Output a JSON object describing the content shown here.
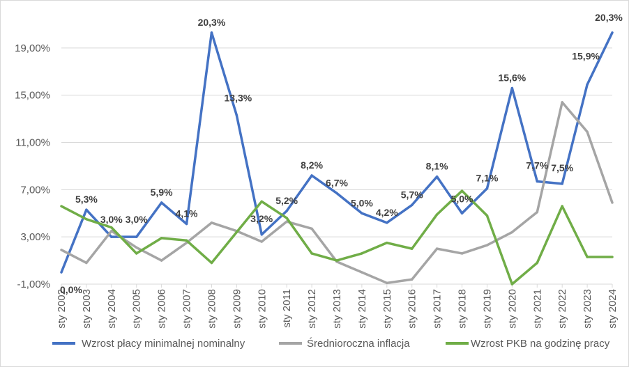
{
  "chart_data": {
    "type": "line",
    "title": "",
    "xlabel": "",
    "ylabel": "",
    "ylim": [
      -1,
      21
    ],
    "yticks": [
      "-1,00%",
      "3,00%",
      "7,00%",
      "11,00%",
      "15,00%",
      "19,00%"
    ],
    "ytick_values": [
      -1,
      3,
      7,
      11,
      15,
      19
    ],
    "categories": [
      "sty 2002",
      "sty 2003",
      "sty 2004",
      "sty 2005",
      "sty 2006",
      "sty 2007",
      "sty 2008",
      "sty 2009",
      "sty 2010",
      "sty 2011",
      "sty 2012",
      "sty 2013",
      "sty 2014",
      "sty 2015",
      "sty 2016",
      "sty 2017",
      "sty 2018",
      "sty 2019",
      "sty 2020",
      "sty 2021",
      "sty 2022",
      "sty 2023",
      "sty 2024"
    ],
    "grid": true,
    "legend_position": "bottom",
    "series": [
      {
        "name": "Wzrost płacy minimalnej nominalny",
        "color": "#4472c4",
        "values": [
          0.0,
          5.3,
          3.0,
          3.0,
          5.9,
          4.1,
          20.3,
          13.3,
          3.2,
          5.2,
          8.2,
          6.7,
          5.0,
          4.2,
          5.7,
          8.1,
          5.0,
          7.1,
          15.6,
          7.7,
          7.5,
          15.9,
          20.3
        ],
        "labels": [
          "0,0%",
          "5,3%",
          "3,0%",
          "3,0%",
          "5,9%",
          "4,1%",
          "20,3%",
          "13,3%",
          "3,2%",
          "5,2%",
          "8,2%",
          "6,7%",
          "5,0%",
          "4,2%",
          "5,7%",
          "8,1%",
          "5,0%",
          "7,1%",
          "15,6%",
          "7,7%",
          "7,5%",
          "15,9%",
          "20,3%"
        ]
      },
      {
        "name": "Średnioroczna inflacja",
        "color": "#a5a5a5",
        "values": [
          1.9,
          0.8,
          3.5,
          2.1,
          1.0,
          2.5,
          4.2,
          3.5,
          2.6,
          4.3,
          3.7,
          0.9,
          0.0,
          -0.9,
          -0.6,
          2.0,
          1.6,
          2.3,
          3.4,
          5.1,
          14.4,
          11.9,
          5.9
        ]
      },
      {
        "name": "Wzrost PKB na godzinę pracy",
        "color": "#70ad47",
        "values": [
          5.6,
          4.5,
          3.8,
          1.6,
          2.9,
          2.7,
          0.8,
          3.4,
          6.0,
          4.6,
          1.6,
          1.0,
          1.6,
          2.5,
          2.0,
          4.9,
          6.9,
          4.8,
          -1.0,
          0.8,
          5.6,
          1.3,
          1.3
        ]
      }
    ]
  }
}
